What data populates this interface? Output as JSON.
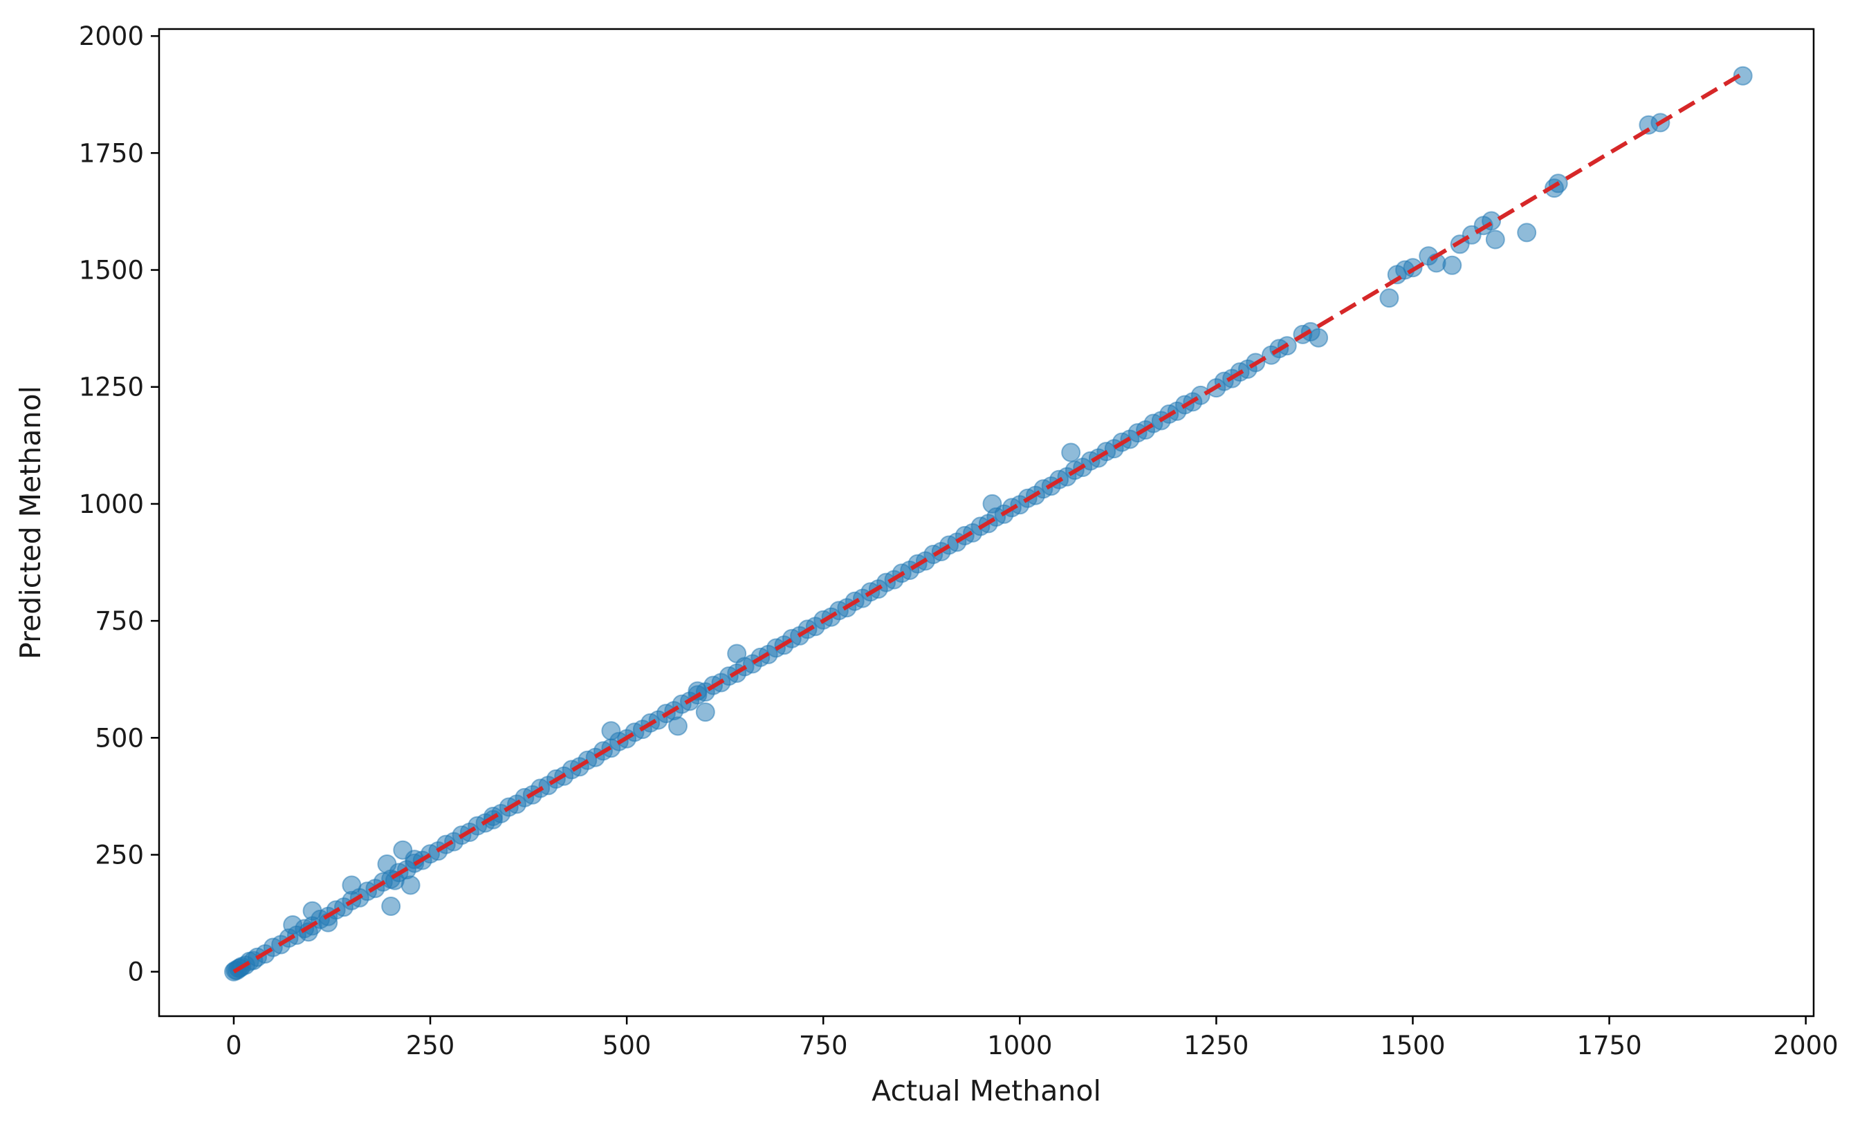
{
  "chart_data": {
    "type": "scatter",
    "title": "",
    "xlabel": "Actual Methanol",
    "ylabel": "Predicted Methanol",
    "xlim": [
      -95,
      2010
    ],
    "ylim": [
      -95,
      2015
    ],
    "xticks": [
      0,
      250,
      500,
      750,
      1000,
      1250,
      1500,
      1750,
      2000
    ],
    "yticks": [
      0,
      250,
      500,
      750,
      1000,
      1250,
      1500,
      1750,
      2000
    ],
    "grid": false,
    "legend": "none",
    "colors": {
      "points": "#1f77b4",
      "reference_line": "#d62728",
      "axes": "#000000"
    },
    "reference_line": {
      "style": "dashed",
      "x": [
        0,
        1920
      ],
      "y": [
        0,
        1920
      ]
    },
    "series": [
      {
        "x": [
          0,
          2,
          4,
          6,
          8,
          10,
          15,
          20,
          25,
          30,
          40,
          50,
          60,
          70,
          80,
          90,
          100,
          110,
          120,
          130,
          140,
          150,
          160,
          170,
          180,
          190,
          200,
          210,
          220,
          230,
          240,
          250,
          260,
          270,
          280,
          290,
          300,
          310,
          320,
          330,
          340,
          350,
          360,
          370,
          380,
          390,
          400,
          410,
          420,
          430,
          440,
          450,
          460,
          470,
          480,
          490,
          500,
          510,
          520,
          530,
          540,
          550,
          560,
          570,
          580,
          590,
          600,
          610,
          620,
          630,
          640,
          650,
          660,
          670,
          680,
          690,
          700,
          710,
          720,
          730,
          740,
          750,
          760,
          770,
          780,
          790,
          800,
          810,
          820,
          830,
          840,
          850,
          860,
          870,
          880,
          890,
          900,
          910,
          920,
          930,
          940,
          950,
          960,
          970,
          980,
          990,
          1000,
          1010,
          1020,
          1030,
          1040,
          1050,
          1060,
          1070,
          1080,
          1090,
          1100,
          1110,
          1120,
          1130,
          1140,
          1150,
          1160,
          1170,
          1180,
          1190,
          1200,
          1210,
          1220,
          1230,
          1250,
          1260,
          1270,
          1280,
          1290,
          1300,
          1320,
          1330,
          1340,
          1360,
          1370,
          1380,
          75,
          95,
          100,
          120,
          150,
          195,
          200,
          205,
          215,
          225,
          230,
          330,
          480,
          565,
          590,
          600,
          640,
          965,
          1065,
          1470,
          1480,
          1490,
          1500,
          1520,
          1530,
          1550,
          1560,
          1575,
          1590,
          1600,
          1605,
          1645,
          1680,
          1685,
          1800,
          1815,
          1920
        ],
        "y": [
          0,
          3,
          3,
          7,
          8,
          11,
          14,
          22,
          24,
          31,
          38,
          52,
          58,
          72,
          78,
          92,
          98,
          112,
          118,
          132,
          138,
          152,
          158,
          172,
          178,
          192,
          198,
          212,
          218,
          232,
          238,
          252,
          258,
          272,
          278,
          292,
          298,
          312,
          318,
          332,
          338,
          352,
          358,
          372,
          378,
          392,
          398,
          412,
          418,
          432,
          438,
          452,
          458,
          472,
          478,
          492,
          498,
          512,
          518,
          532,
          538,
          552,
          558,
          572,
          578,
          592,
          598,
          612,
          618,
          632,
          638,
          652,
          658,
          672,
          678,
          692,
          698,
          712,
          718,
          732,
          738,
          752,
          758,
          772,
          778,
          792,
          798,
          812,
          818,
          832,
          838,
          852,
          858,
          872,
          878,
          892,
          898,
          912,
          918,
          932,
          938,
          952,
          958,
          972,
          978,
          992,
          998,
          1012,
          1018,
          1032,
          1038,
          1052,
          1058,
          1072,
          1078,
          1092,
          1098,
          1112,
          1118,
          1132,
          1138,
          1152,
          1158,
          1172,
          1178,
          1192,
          1198,
          1212,
          1218,
          1232,
          1248,
          1262,
          1268,
          1282,
          1288,
          1302,
          1318,
          1332,
          1338,
          1362,
          1368,
          1355,
          100,
          85,
          130,
          105,
          185,
          230,
          140,
          195,
          260,
          185,
          240,
          325,
          515,
          525,
          600,
          555,
          680,
          1000,
          1110,
          1440,
          1490,
          1500,
          1505,
          1530,
          1515,
          1510,
          1555,
          1575,
          1595,
          1605,
          1565,
          1580,
          1675,
          1685,
          1810,
          1815,
          1915
        ]
      }
    ]
  }
}
